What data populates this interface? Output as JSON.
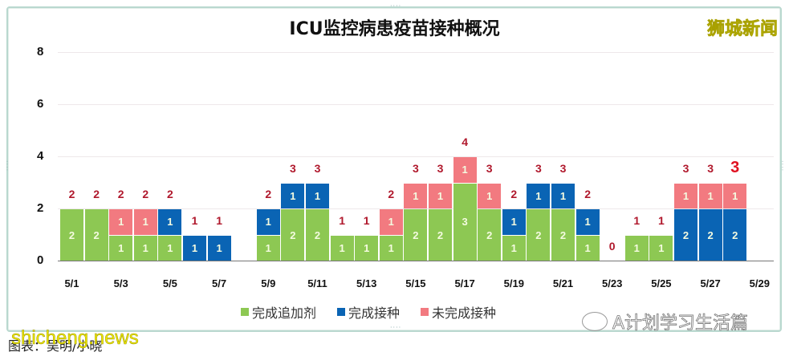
{
  "header": {
    "title": "ICU监控病患疫苗接种概况",
    "watermark_top_right": "狮城新闻"
  },
  "footer": {
    "caption": "图表：吴明/小晓",
    "watermark_site": "shicheng.news",
    "wechat_account": "A计划学习生活篇"
  },
  "legend": [
    {
      "label": "完成追加剂",
      "color": "#8dc853"
    },
    {
      "label": "完成接种",
      "color": "#0a64b4"
    },
    {
      "label": "未完成接种",
      "color": "#f27a80"
    }
  ],
  "colors": {
    "booster": "#8dc853",
    "full": "#0a64b4",
    "incomplete": "#f27a80",
    "total_label": "#b0182c"
  },
  "axis": {
    "y_ticks": [
      "0",
      "2",
      "4",
      "6",
      "8"
    ],
    "x_ticks": [
      "5/1",
      "5/3",
      "5/5",
      "5/7",
      "5/9",
      "5/11",
      "5/13",
      "5/15",
      "5/17",
      "5/19",
      "5/21",
      "5/23",
      "5/25",
      "5/27",
      "5/29"
    ]
  },
  "chart_data": {
    "type": "bar",
    "stacked": true,
    "title": "ICU监控病患疫苗接种概况",
    "xlabel": "",
    "ylabel": "",
    "ylim": [
      0,
      8
    ],
    "grid": true,
    "legend_position": "bottom",
    "categories": [
      "5/1",
      "5/2",
      "5/3",
      "5/4",
      "5/5",
      "5/6",
      "5/7",
      "5/8",
      "5/9",
      "5/10",
      "5/11",
      "5/12",
      "5/13",
      "5/14",
      "5/15",
      "5/16",
      "5/17",
      "5/18",
      "5/19",
      "5/20",
      "5/21",
      "5/22",
      "5/23",
      "5/24",
      "5/25",
      "5/26",
      "5/27",
      "5/28",
      "5/29"
    ],
    "series": [
      {
        "name": "完成追加剂",
        "values": [
          2,
          2,
          1,
          1,
          1,
          0,
          0,
          0,
          1,
          2,
          2,
          1,
          1,
          1,
          2,
          2,
          3,
          2,
          1,
          2,
          2,
          1,
          0,
          1,
          1,
          0,
          0,
          0,
          0
        ]
      },
      {
        "name": "完成接种",
        "values": [
          0,
          0,
          0,
          0,
          1,
          1,
          1,
          0,
          1,
          1,
          1,
          0,
          0,
          0,
          0,
          0,
          0,
          0,
          1,
          1,
          1,
          1,
          0,
          0,
          0,
          2,
          2,
          2,
          0
        ]
      },
      {
        "name": "未完成接种",
        "values": [
          0,
          0,
          1,
          1,
          0,
          0,
          0,
          0,
          0,
          0,
          0,
          0,
          0,
          1,
          1,
          1,
          1,
          1,
          0,
          0,
          0,
          0,
          0,
          0,
          0,
          1,
          1,
          1,
          0
        ]
      }
    ],
    "totals": [
      2,
      2,
      2,
      2,
      2,
      1,
      1,
      null,
      2,
      3,
      3,
      1,
      1,
      2,
      3,
      3,
      4,
      3,
      2,
      3,
      3,
      2,
      0,
      1,
      1,
      3,
      3,
      3,
      null
    ],
    "annotations": [
      "5/28 total '3' shown in larger bold red"
    ]
  }
}
